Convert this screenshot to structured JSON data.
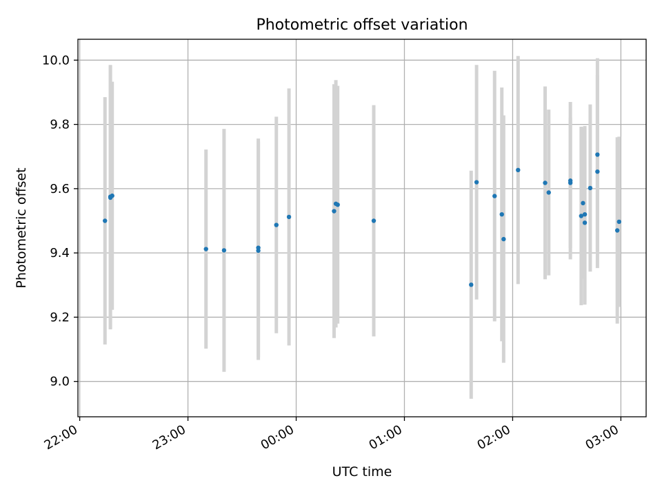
{
  "chart_data": {
    "type": "scatter",
    "title": "Photometric offset variation",
    "xlabel": "UTC time",
    "ylabel": "Photometric offset",
    "x_ticks": [
      "22:00",
      "23:00",
      "00:00",
      "01:00",
      "02:00",
      "03:00"
    ],
    "y_ticks": [
      "9.0",
      "9.2",
      "9.4",
      "9.6",
      "9.8",
      "10.0"
    ],
    "xlim": [
      "21:59",
      "03:14"
    ],
    "ylim": [
      8.89,
      10.065
    ],
    "grid": true,
    "colors": {
      "marker": "#1f77b4",
      "errorbar": "#d3d3d3",
      "grid": "#b0b0b0"
    },
    "points": [
      {
        "x": "22:14",
        "y": 9.5,
        "err": 0.385
      },
      {
        "x": "22:17",
        "y": 9.572,
        "err": 0.41
      },
      {
        "x": "22:17",
        "y": 9.575,
        "err": 0.41
      },
      {
        "x": "22:18",
        "y": 9.578,
        "err": 0.355
      },
      {
        "x": "23:10",
        "y": 9.412,
        "err": 0.31
      },
      {
        "x": "23:20",
        "y": 9.408,
        "err": 0.378
      },
      {
        "x": "23:39",
        "y": 9.407,
        "err": 0.34
      },
      {
        "x": "23:39",
        "y": 9.416,
        "err": 0.34
      },
      {
        "x": "23:49",
        "y": 9.487,
        "err": 0.337
      },
      {
        "x": "23:56",
        "y": 9.512,
        "err": 0.4
      },
      {
        "x": "00:21",
        "y": 9.53,
        "err": 0.395
      },
      {
        "x": "00:22",
        "y": 9.553,
        "err": 0.385
      },
      {
        "x": "00:23",
        "y": 9.55,
        "err": 0.37
      },
      {
        "x": "00:43",
        "y": 9.5,
        "err": 0.36
      },
      {
        "x": "01:37",
        "y": 9.301,
        "err": 0.355
      },
      {
        "x": "01:40",
        "y": 9.62,
        "err": 0.365
      },
      {
        "x": "01:50",
        "y": 9.577,
        "err": 0.39
      },
      {
        "x": "01:54",
        "y": 9.52,
        "err": 0.395
      },
      {
        "x": "01:55",
        "y": 9.443,
        "err": 0.385
      },
      {
        "x": "02:03",
        "y": 9.658,
        "err": 0.355
      },
      {
        "x": "02:18",
        "y": 9.618,
        "err": 0.3
      },
      {
        "x": "02:20",
        "y": 9.588,
        "err": 0.258
      },
      {
        "x": "02:32",
        "y": 9.618,
        "err": 0.203
      },
      {
        "x": "02:32",
        "y": 9.625,
        "err": 0.245
      },
      {
        "x": "02:38",
        "y": 9.515,
        "err": 0.278
      },
      {
        "x": "02:39",
        "y": 9.555,
        "err": 0.235
      },
      {
        "x": "02:40",
        "y": 9.52,
        "err": 0.275
      },
      {
        "x": "02:40",
        "y": 9.494,
        "err": 0.255
      },
      {
        "x": "02:43",
        "y": 9.602,
        "err": 0.26
      },
      {
        "x": "02:47",
        "y": 9.706,
        "err": 0.3
      },
      {
        "x": "02:47",
        "y": 9.653,
        "err": 0.3
      },
      {
        "x": "02:58",
        "y": 9.47,
        "err": 0.29
      },
      {
        "x": "02:59",
        "y": 9.497,
        "err": 0.265
      }
    ]
  }
}
